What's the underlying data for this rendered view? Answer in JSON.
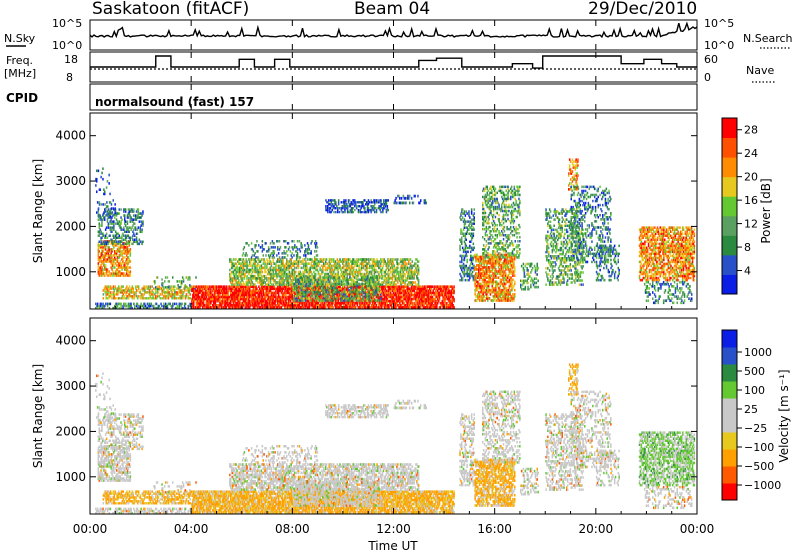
{
  "header": {
    "station": "Saskatoon (fitACF)",
    "beam": "Beam 04",
    "date": "29/Dec/2010"
  },
  "top_panels": {
    "nsky_label": "N.Sky",
    "nsearch_label": "N.Search",
    "noise_ticks_left": [
      "10^5",
      "10^0"
    ],
    "noise_ticks_right": [
      "10^5",
      "10^0"
    ],
    "freq_label_1": "Freq.",
    "freq_label_2": "[MHz]",
    "freq_ticks": [
      "18",
      "8"
    ],
    "nave_label": "Nave",
    "nave_ticks": [
      "60",
      "0"
    ],
    "cpid_label": "CPID",
    "cpid_value": "normalsound (fast) 157"
  },
  "colors": {
    "power_scale": [
      "#0a1ee6",
      "#2850c8",
      "#2a8a40",
      "#5aa060",
      "#64c832",
      "#e6c81e",
      "#ff8c00",
      "#ff5000",
      "#ff0000"
    ],
    "velocity_scale": [
      "#ff0000",
      "#ff5a00",
      "#ffa000",
      "#e6c81e",
      "#c8c8c8",
      "#c8c8c8",
      "#64c832",
      "#2a8a40",
      "#2850c8",
      "#0a1ee6"
    ]
  },
  "chart_data": [
    {
      "type": "heatmap",
      "name": "power",
      "ylabel": "Slant Range [km]",
      "xlabel": "Time UT",
      "x_ticks": [
        "00:00",
        "04:00",
        "08:00",
        "12:00",
        "16:00",
        "20:00",
        "00:00"
      ],
      "x_range_hours": [
        0,
        24
      ],
      "y_ticks": [
        "1000",
        "2000",
        "3000",
        "4000"
      ],
      "y_range_km": [
        180,
        4500
      ],
      "colorbar_label": "Power [dB]",
      "colorbar_ticks": [
        "4",
        "8",
        "12",
        "16",
        "20",
        "24",
        "28"
      ],
      "colorbar_range": [
        0,
        30
      ]
    },
    {
      "type": "heatmap",
      "name": "velocity",
      "ylabel": "Slant Range [km]",
      "xlabel": "Time UT",
      "x_ticks": [
        "00:00",
        "04:00",
        "08:00",
        "12:00",
        "16:00",
        "20:00",
        "00:00"
      ],
      "x_range_hours": [
        0,
        24
      ],
      "y_ticks": [
        "1000",
        "2000",
        "3000",
        "4000"
      ],
      "y_range_km": [
        180,
        4500
      ],
      "colorbar_label": "Velocity [m s⁻¹]",
      "colorbar_ticks": [
        "1000",
        "500",
        "100",
        "25",
        "−25",
        "−100",
        "−500",
        "−1000"
      ]
    }
  ],
  "x_axis": {
    "label": "Time UT",
    "ticks": [
      "00:00",
      "04:00",
      "08:00",
      "12:00",
      "16:00",
      "20:00",
      "00:00"
    ]
  }
}
